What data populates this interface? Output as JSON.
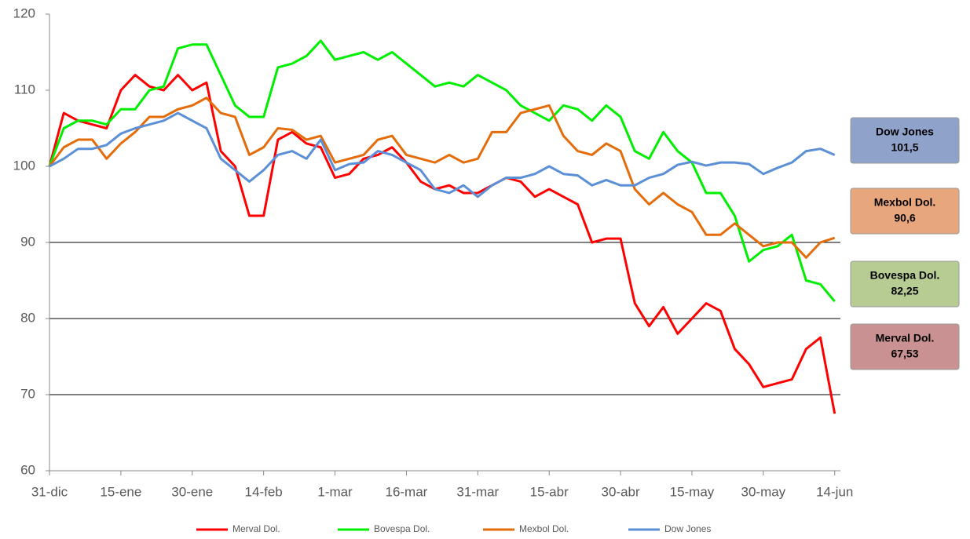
{
  "chart_data": {
    "type": "line",
    "x": [
      0,
      3,
      6,
      9,
      12,
      15,
      18,
      21,
      24,
      27,
      30,
      33,
      36,
      39,
      42,
      45,
      48,
      51,
      54,
      57,
      60,
      63,
      66,
      69,
      72,
      75,
      78,
      81,
      84,
      87,
      90,
      93,
      96,
      99,
      102,
      105,
      108,
      111,
      114,
      117,
      120,
      123,
      126,
      129,
      132,
      135,
      138,
      141,
      144,
      147,
      150,
      153,
      156,
      159,
      162,
      165
    ],
    "series": [
      {
        "name": "Merval Dol.",
        "color": "#ff0000",
        "box_color": "#c99191",
        "end_label": "67,53",
        "values": [
          100,
          107,
          106,
          105.5,
          105,
          110,
          112,
          110.5,
          110,
          112,
          110,
          111,
          102,
          100,
          93.5,
          93.5,
          103.5,
          104.5,
          103,
          102.5,
          98.5,
          99,
          101,
          101.5,
          102.5,
          100.5,
          98,
          97,
          97.5,
          96.5,
          96.5,
          97.5,
          98.5,
          98,
          96,
          97,
          96,
          95,
          90,
          90.5,
          90.5,
          82,
          79,
          81.5,
          78,
          80,
          82,
          81,
          76,
          74,
          71,
          71.5,
          72,
          76,
          77.5,
          67.5
        ]
      },
      {
        "name": "Bovespa Dol.",
        "color": "#00ee00",
        "box_color": "#b7cc92",
        "end_label": "82,25",
        "values": [
          100,
          105,
          106,
          106,
          105.5,
          107.5,
          107.5,
          110,
          110.5,
          115.5,
          116,
          116,
          112,
          108,
          106.5,
          106.5,
          113,
          113.5,
          114.5,
          116.5,
          114,
          114.5,
          115,
          114,
          115,
          113.5,
          112,
          110.5,
          111,
          110.5,
          112,
          111,
          110,
          108,
          107,
          106,
          108,
          107.5,
          106,
          108,
          106.5,
          102,
          101,
          104.5,
          102,
          100.5,
          96.5,
          96.5,
          93.5,
          87.5,
          89,
          89.5,
          91,
          85,
          84.5,
          82.25
        ]
      },
      {
        "name": "Mexbol Dol.",
        "color": "#e46c0a",
        "box_color": "#e8a67d",
        "end_label": "90,6",
        "values": [
          100,
          102.5,
          103.5,
          103.5,
          101,
          103,
          104.5,
          106.5,
          106.5,
          107.5,
          108,
          109,
          107,
          106.5,
          101.5,
          102.5,
          105,
          104.8,
          103.5,
          104,
          100.5,
          101,
          101.5,
          103.5,
          104,
          101.5,
          101,
          100.5,
          101.5,
          100.5,
          101,
          104.5,
          104.5,
          107,
          107.5,
          108,
          104,
          102,
          101.5,
          103,
          102,
          97,
          95,
          96.5,
          95,
          94,
          91,
          91,
          92.5,
          91,
          89.5,
          90,
          90,
          88,
          90,
          90.6
        ]
      },
      {
        "name": "Dow Jones",
        "color": "#5b8fd6",
        "box_color": "#8fa2ca",
        "end_label": "101,5",
        "values": [
          100,
          101,
          102.3,
          102.3,
          102.8,
          104.3,
          105,
          105.5,
          106,
          107,
          106,
          105,
          101,
          99.5,
          98,
          99.5,
          101.5,
          102,
          101,
          103.5,
          99.5,
          100.3,
          100.5,
          102,
          101.5,
          100.5,
          99.5,
          97,
          96.5,
          97.5,
          96,
          97.5,
          98.5,
          98.5,
          99,
          100,
          99,
          98.8,
          97.5,
          98.2,
          97.5,
          97.5,
          98.5,
          99,
          100.2,
          100.6,
          100.1,
          100.5,
          100.5,
          100.3,
          99,
          99.8,
          100.5,
          102,
          102.3,
          101.5
        ]
      }
    ],
    "xlim": [
      0,
      166.2
    ],
    "xticks": [
      {
        "value": 0,
        "label": "31-dic"
      },
      {
        "value": 15,
        "label": "15-ene"
      },
      {
        "value": 30,
        "label": "30-ene"
      },
      {
        "value": 45,
        "label": "14-feb"
      },
      {
        "value": 60,
        "label": "1-mar"
      },
      {
        "value": 75,
        "label": "16-mar"
      },
      {
        "value": 90,
        "label": "31-mar"
      },
      {
        "value": 105,
        "label": "15-abr"
      },
      {
        "value": 120,
        "label": "30-abr"
      },
      {
        "value": 135,
        "label": "15-may"
      },
      {
        "value": 150,
        "label": "30-may"
      },
      {
        "value": 165,
        "label": "14-jun"
      }
    ],
    "ylim": [
      60,
      120
    ],
    "yticks": [
      60,
      70,
      80,
      90,
      100,
      110,
      120
    ],
    "grid_values": [
      70,
      80,
      90
    ],
    "legend": "bottom"
  }
}
